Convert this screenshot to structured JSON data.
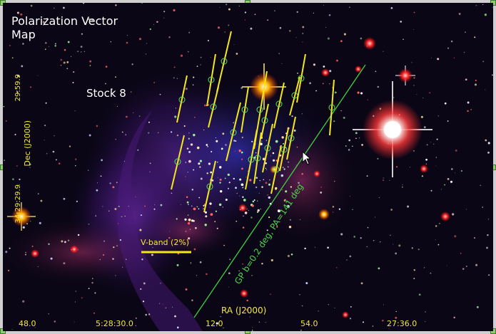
{
  "title_line1": "Polarization Vector",
  "title_line2": "Map",
  "cluster_name": "Stock 8",
  "dec_tick_top": "29:59.9",
  "dec_axis_label": "Dec (J2000)",
  "dec_tick_bottom": "34:29:29.9",
  "ra_axis_label": "RA (J2000)",
  "ra_ticks": [
    "48.0",
    "5:28:30.0",
    "12.0",
    "54.0",
    "27:36.0"
  ],
  "scale_label": "V-band (2%)",
  "gp_label": "GP b=0.2 deg, PA=141 deg",
  "colors": {
    "vector": "#f4e81a",
    "circle": "#5ee05a",
    "galactic_plane": "#3fd13f",
    "text_axis": "#f1e83a"
  },
  "icons": [
    "mouse-cursor-icon",
    "selection-handle-icon"
  ]
}
